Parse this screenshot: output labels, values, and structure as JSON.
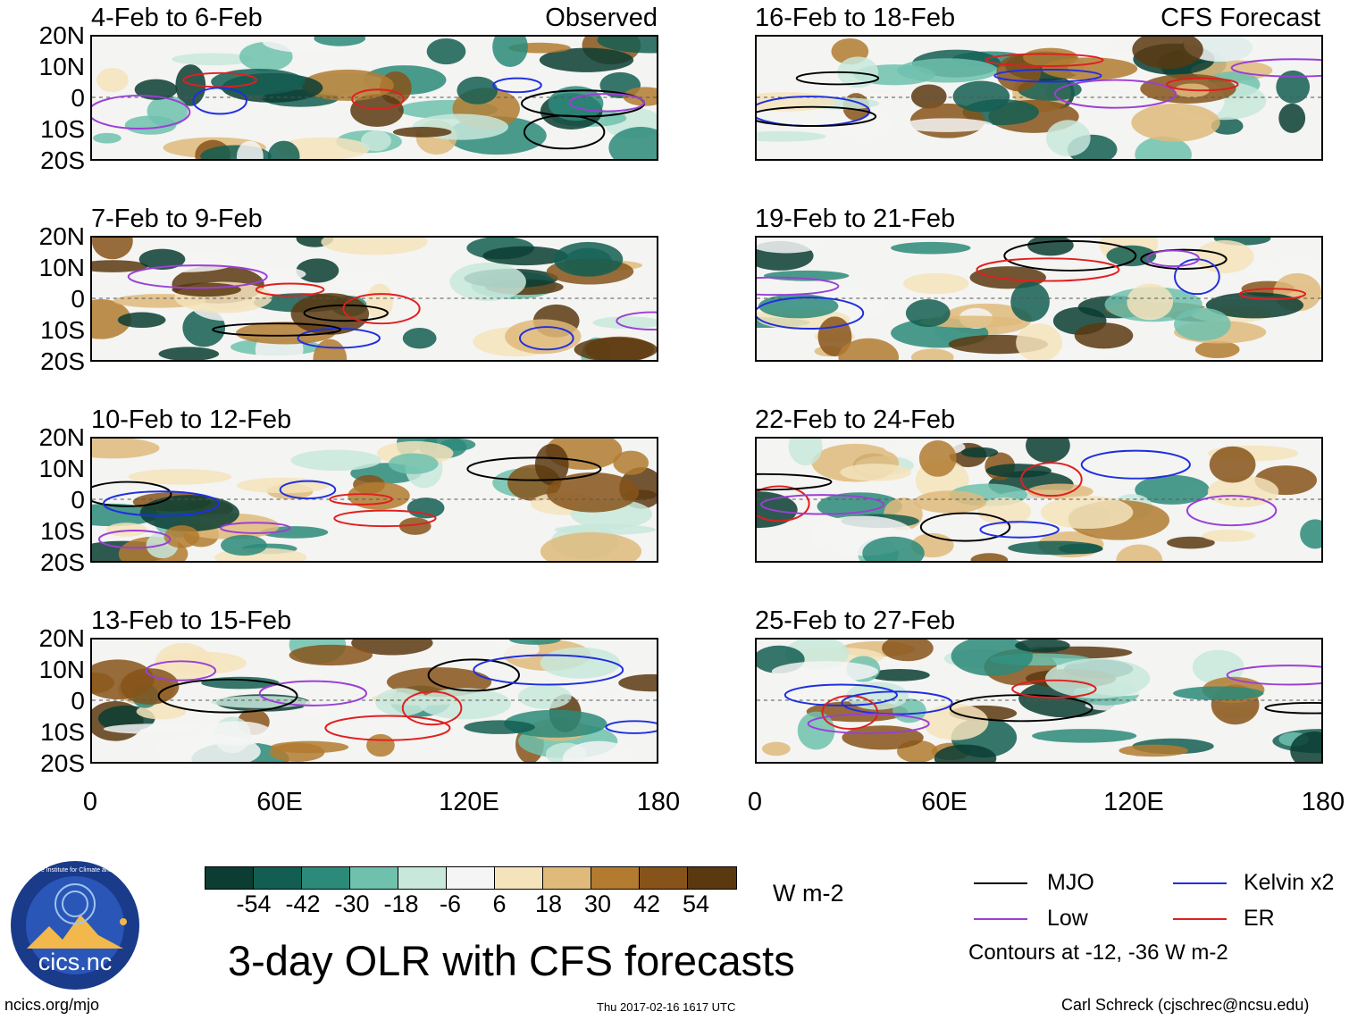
{
  "panels": [
    {
      "title": "4-Feb to 6-Feb",
      "label": "Observed"
    },
    {
      "title": "16-Feb to 18-Feb",
      "label": "CFS Forecast"
    },
    {
      "title": "7-Feb to 9-Feb",
      "label": ""
    },
    {
      "title": "19-Feb to 21-Feb",
      "label": ""
    },
    {
      "title": "10-Feb to 12-Feb",
      "label": ""
    },
    {
      "title": "22-Feb to 24-Feb",
      "label": ""
    },
    {
      "title": "13-Feb to 15-Feb",
      "label": ""
    },
    {
      "title": "25-Feb to 27-Feb",
      "label": ""
    }
  ],
  "y_axis_labels": [
    "20N",
    "10N",
    "0",
    "10S",
    "20S"
  ],
  "x_axis_labels": [
    "0",
    "60E",
    "120E",
    "180"
  ],
  "colorbar": {
    "ticks": [
      "-54",
      "-42",
      "-30",
      "-18",
      "-6",
      "6",
      "18",
      "30",
      "42",
      "54"
    ],
    "colors": [
      "#0b3d33",
      "#135e52",
      "#2c8a7a",
      "#6fc1ae",
      "#c8e8dc",
      "#f5f5f5",
      "#f5e3bc",
      "#dfba7b",
      "#b27b30",
      "#86531a",
      "#5a3810"
    ],
    "units": "W m-2"
  },
  "title": "3-day OLR with CFS forecasts",
  "legend": {
    "items": [
      {
        "label": "MJO",
        "color": "#000000"
      },
      {
        "label": "Kelvin x2",
        "color": "#1f2fe0"
      },
      {
        "label": "Low",
        "color": "#9b3fd6"
      },
      {
        "label": "ER",
        "color": "#e01f1f"
      }
    ],
    "note": "Contours at -12, -36 W m-2"
  },
  "logo_text": "cics.nc",
  "logo_ring_text": "Cooperative Institute for Climate and Satellites",
  "footer": {
    "left": "ncics.org/mjo",
    "center": "Thu 2017-02-16 1617 UTC",
    "right": "Carl Schreck (cjschrec@ncsu.edu)"
  }
}
